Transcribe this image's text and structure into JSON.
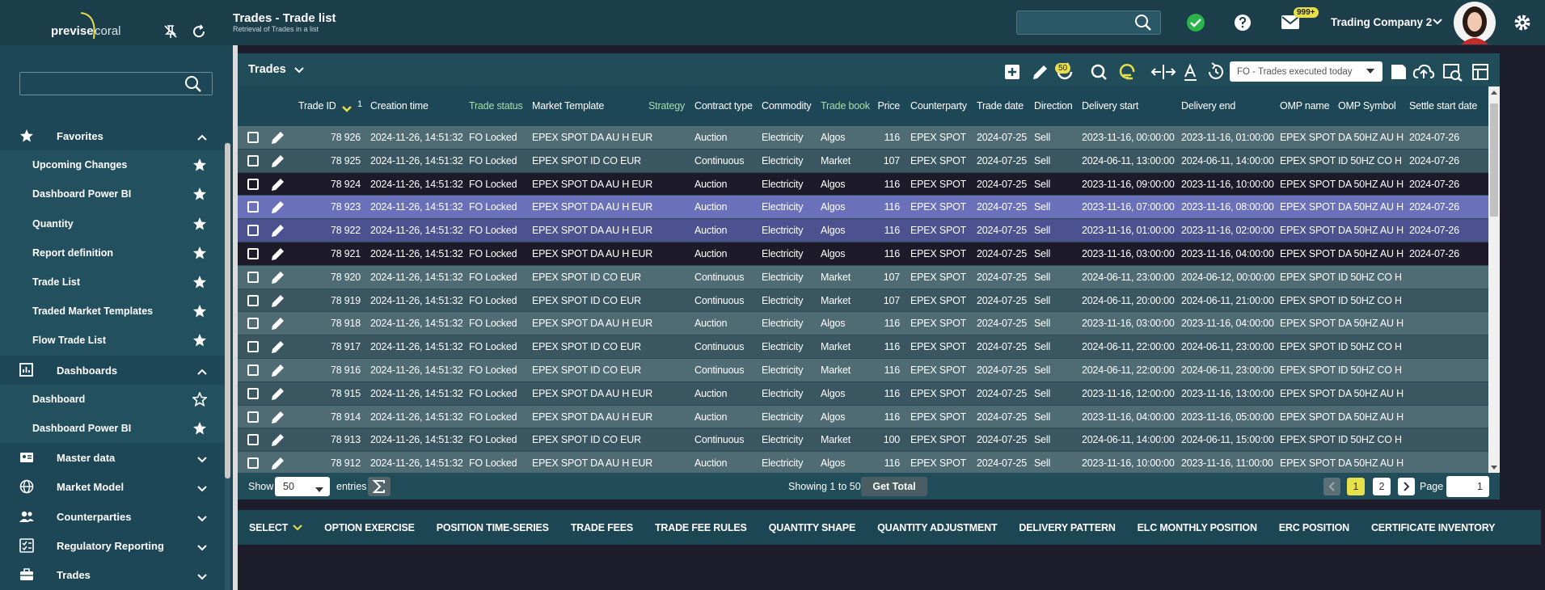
{
  "header": {
    "title": "Trades - Trade list",
    "subtitle": "Retrieval of Trades in a list",
    "notifications": "999+",
    "company": "Trading Company 2"
  },
  "sidebar": {
    "logo": {
      "brand": "previse",
      "product": "coral"
    },
    "sections": [
      {
        "label": "Favorites",
        "items": [
          "Upcoming Changes",
          "Dashboard Power BI",
          "Quantity",
          "Report definition",
          "Trade List",
          "Traded Market Templates",
          "Flow Trade List"
        ]
      },
      {
        "label": "Dashboards",
        "items": [
          "Dashboard",
          "Dashboard Power BI"
        ]
      },
      {
        "label": "Master data"
      },
      {
        "label": "Market Model"
      },
      {
        "label": "Counterparties"
      },
      {
        "label": "Regulatory Reporting"
      },
      {
        "label": "Trades"
      }
    ]
  },
  "panel": {
    "title": "Trades",
    "refresh_count": 50,
    "filter": "FO - Trades executed today",
    "sort_order": 1,
    "columns": [
      "Trade ID",
      "Creation time",
      "Trade status",
      "Market Template",
      "Strategy",
      "Contract type",
      "Commodity",
      "Trade book",
      "Price",
      "Counterparty",
      "Trade date",
      "Direction",
      "Delivery start",
      "Delivery end",
      "OMP name",
      "OMP Symbol",
      "Settle start date"
    ],
    "rows": [
      [
        "78 926",
        "2024-11-26, 14:51:32",
        "FO Locked",
        "EPEX SPOT DA AU H EUR",
        null,
        "Auction",
        "Electricity",
        "Algos",
        116,
        "EPEX SPOT",
        "2024-07-25",
        "Sell",
        "2023-11-16, 00:00:00",
        "2023-11-16, 01:00:00",
        "EPEX SPOT",
        "DA 50HZ AU H",
        "2024-07-26"
      ],
      [
        "78 925",
        "2024-11-26, 14:51:32",
        "FO Locked",
        "EPEX SPOT ID CO EUR",
        null,
        "Continuous",
        "Electricity",
        "Market",
        107,
        "EPEX SPOT",
        "2024-07-25",
        "Sell",
        "2024-06-11, 13:00:00",
        "2024-06-11, 14:00:00",
        "EPEX SPOT",
        "ID 50HZ CO H",
        "2024-07-26"
      ],
      [
        "78 924",
        "2024-11-26, 14:51:32",
        "FO Locked",
        "EPEX SPOT DA AU H EUR",
        null,
        "Auction",
        "Electricity",
        "Algos",
        116,
        "EPEX SPOT",
        "2024-07-25",
        "Sell",
        "2023-11-16, 09:00:00",
        "2023-11-16, 10:00:00",
        "EPEX SPOT",
        "DA 50HZ AU H",
        "2024-07-26"
      ],
      [
        "78 923",
        "2024-11-26, 14:51:32",
        "FO Locked",
        "EPEX SPOT DA AU H EUR",
        null,
        "Auction",
        "Electricity",
        "Algos",
        116,
        "EPEX SPOT",
        "2024-07-25",
        "Sell",
        "2023-11-16, 07:00:00",
        "2023-11-16, 08:00:00",
        "EPEX SPOT",
        "DA 50HZ AU H",
        "2024-07-26"
      ],
      [
        "78 922",
        "2024-11-26, 14:51:32",
        "FO Locked",
        "EPEX SPOT DA AU H EUR",
        null,
        "Auction",
        "Electricity",
        "Algos",
        116,
        "EPEX SPOT",
        "2024-07-25",
        "Sell",
        "2023-11-16, 01:00:00",
        "2023-11-16, 02:00:00",
        "EPEX SPOT",
        "DA 50HZ AU H",
        "2024-07-26"
      ],
      [
        "78 921",
        "2024-11-26, 14:51:32",
        "FO Locked",
        "EPEX SPOT DA AU H EUR",
        null,
        "Auction",
        "Electricity",
        "Algos",
        116,
        "EPEX SPOT",
        "2024-07-25",
        "Sell",
        "2023-11-16, 03:00:00",
        "2023-11-16, 04:00:00",
        "EPEX SPOT",
        "DA 50HZ AU H",
        "2024-07-26"
      ],
      [
        "78 920",
        "2024-11-26, 14:51:32",
        "FO Locked",
        "EPEX SPOT ID CO EUR",
        null,
        "Continuous",
        "Electricity",
        "Market",
        107,
        "EPEX SPOT",
        "2024-07-25",
        "Sell",
        "2024-06-11, 23:00:00",
        "2024-06-12, 00:00:00",
        "EPEX SPOT",
        "ID 50HZ CO H",
        null
      ],
      [
        "78 919",
        "2024-11-26, 14:51:32",
        "FO Locked",
        "EPEX SPOT ID CO EUR",
        null,
        "Continuous",
        "Electricity",
        "Market",
        107,
        "EPEX SPOT",
        "2024-07-25",
        "Sell",
        "2024-06-11, 20:00:00",
        "2024-06-11, 21:00:00",
        "EPEX SPOT",
        "ID 50HZ CO H",
        null
      ],
      [
        "78 918",
        "2024-11-26, 14:51:32",
        "FO Locked",
        "EPEX SPOT DA AU H EUR",
        null,
        "Auction",
        "Electricity",
        "Algos",
        116,
        "EPEX SPOT",
        "2024-07-25",
        "Sell",
        "2023-11-16, 03:00:00",
        "2023-11-16, 04:00:00",
        "EPEX SPOT",
        "DA 50HZ AU H",
        null
      ],
      [
        "78 917",
        "2024-11-26, 14:51:32",
        "FO Locked",
        "EPEX SPOT ID CO EUR",
        null,
        "Continuous",
        "Electricity",
        "Market",
        116,
        "EPEX SPOT",
        "2024-07-25",
        "Sell",
        "2024-06-11, 22:00:00",
        "2024-06-11, 23:00:00",
        "EPEX SPOT",
        "ID 50HZ CO H",
        null
      ],
      [
        "78 916",
        "2024-11-26, 14:51:32",
        "FO Locked",
        "EPEX SPOT ID CO EUR",
        null,
        "Continuous",
        "Electricity",
        "Market",
        116,
        "EPEX SPOT",
        "2024-07-25",
        "Sell",
        "2024-06-11, 22:00:00",
        "2024-06-11, 23:00:00",
        "EPEX SPOT",
        "ID 50HZ CO H",
        null
      ],
      [
        "78 915",
        "2024-11-26, 14:51:32",
        "FO Locked",
        "EPEX SPOT DA AU H EUR",
        null,
        "Auction",
        "Electricity",
        "Algos",
        116,
        "EPEX SPOT",
        "2024-07-25",
        "Sell",
        "2023-11-16, 12:00:00",
        "2023-11-16, 13:00:00",
        "EPEX SPOT",
        "DA 50HZ AU H",
        null
      ],
      [
        "78 914",
        "2024-11-26, 14:51:32",
        "FO Locked",
        "EPEX SPOT DA AU H EUR",
        null,
        "Auction",
        "Electricity",
        "Algos",
        116,
        "EPEX SPOT",
        "2024-07-25",
        "Sell",
        "2023-11-16, 04:00:00",
        "2023-11-16, 05:00:00",
        "EPEX SPOT",
        "DA 50HZ AU H",
        null
      ],
      [
        "78 913",
        "2024-11-26, 14:51:32",
        "FO Locked",
        "EPEX SPOT ID CO EUR",
        null,
        "Continuous",
        "Electricity",
        "Market",
        100,
        "EPEX SPOT",
        "2024-07-25",
        "Sell",
        "2024-06-11, 14:00:00",
        "2024-06-11, 15:00:00",
        "EPEX SPOT",
        "ID 50HZ CO H",
        null
      ],
      [
        "78 912",
        "2024-11-26, 14:51:32",
        "FO Locked",
        "EPEX SPOT DA AU H EUR",
        null,
        "Auction",
        "Electricity",
        "Algos",
        116,
        "EPEX SPOT",
        "2024-07-25",
        "Sell",
        "2023-11-16, 10:00:00",
        "2023-11-16, 11:00:00",
        "EPEX SPOT",
        "DA 50HZ AU H",
        null
      ]
    ],
    "footer": {
      "show": "Show",
      "page_size": 50,
      "entries": "entries",
      "summary": "Showing 1 to 50",
      "get_total": "Get Total",
      "pages": [
        1,
        2
      ],
      "page_label": "Page",
      "page_input": 1
    }
  },
  "tabs": [
    "SELECT",
    "OPTION EXERCISE",
    "POSITION TIME-SERIES",
    "TRADE FEES",
    "TRADE FEE RULES",
    "QUANTITY SHAPE",
    "QUANTITY ADJUSTMENT",
    "DELIVERY PATTERN",
    "ELC MONTHLY POSITION",
    "ERC POSITION",
    "CERTIFICATE INVENTORY"
  ]
}
